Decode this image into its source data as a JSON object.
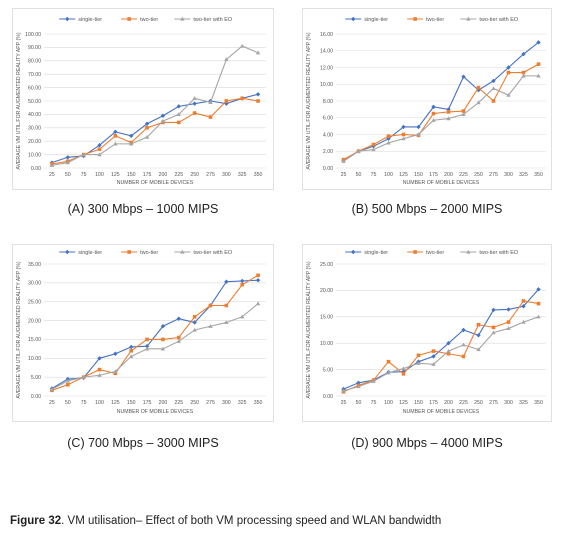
{
  "figure": {
    "label": "Figure 32",
    "text": ". VM utilisation– Effect of both VM processing speed and WLAN bandwidth"
  },
  "chart_data": [
    {
      "type": "line",
      "caption": "(A) 300 Mbps – 1000 MIPS",
      "xlabel": "NUMBER OF MOBILE DEVICES",
      "ylabel": "AVERAGE VM UTIL.FOR AUGMENTED REALITY APP (%)",
      "categories": [
        "25",
        "50",
        "75",
        "100",
        "125",
        "150",
        "175",
        "200",
        "225",
        "250",
        "275",
        "300",
        "325",
        "350"
      ],
      "yticks": [
        "0.00",
        "10.00",
        "20.00",
        "30.00",
        "40.00",
        "50.00",
        "60.00",
        "70.00",
        "80.00",
        "90.00",
        "100.00"
      ],
      "ylim": [
        0,
        100
      ],
      "legend_position": "top-center",
      "series": [
        {
          "name": "single-tier",
          "color": "#4472C4",
          "marker": "diamond",
          "values": [
            4,
            8,
            9,
            17,
            27,
            24,
            33,
            39,
            46,
            48,
            50,
            48,
            52,
            55
          ]
        },
        {
          "name": "two-tier",
          "color": "#ED7D31",
          "marker": "square",
          "values": [
            3,
            5,
            10,
            14,
            24,
            19,
            30,
            34,
            34,
            41,
            38,
            50,
            52,
            50
          ]
        },
        {
          "name": "two-tier with EO",
          "color": "#A5A5A5",
          "marker": "triangle",
          "values": [
            2,
            4,
            10,
            10,
            18,
            18,
            23,
            35,
            40,
            52,
            49,
            81,
            91,
            86
          ]
        }
      ]
    },
    {
      "type": "line",
      "caption": "(B) 500 Mbps – 2000 MIPS",
      "xlabel": "NUMBER OF MOBILE DEVICES",
      "ylabel": "AVERAGE VM UTIL.FOR AUGMENTED REALITY APP (%)",
      "categories": [
        "25",
        "50",
        "75",
        "100",
        "125",
        "150",
        "175",
        "200",
        "225",
        "250",
        "275",
        "300",
        "325",
        "350"
      ],
      "yticks": [
        "0.00",
        "2.00",
        "4.00",
        "6.00",
        "8.00",
        "10.00",
        "12.00",
        "14.00",
        "16.00"
      ],
      "ylim": [
        0,
        16
      ],
      "legend_position": "top-center",
      "series": [
        {
          "name": "single-tier",
          "color": "#4472C4",
          "marker": "diamond",
          "values": [
            0.9,
            2.0,
            2.6,
            3.5,
            4.9,
            4.9,
            7.3,
            7.0,
            10.9,
            9.3,
            10.4,
            12.0,
            13.6,
            15.0
          ]
        },
        {
          "name": "two-tier",
          "color": "#ED7D31",
          "marker": "square",
          "values": [
            1.0,
            2.0,
            2.8,
            3.8,
            4.0,
            3.9,
            6.5,
            6.7,
            6.8,
            9.6,
            8.0,
            11.4,
            11.4,
            12.4
          ]
        },
        {
          "name": "two-tier with EO",
          "color": "#A5A5A5",
          "marker": "triangle",
          "values": [
            0.8,
            2.0,
            2.2,
            3.0,
            3.5,
            4.0,
            5.7,
            5.9,
            6.4,
            7.8,
            9.5,
            8.7,
            11.0,
            11.0
          ]
        }
      ]
    },
    {
      "type": "line",
      "caption": "(C) 700 Mbps – 3000 MIPS",
      "xlabel": "NUMBER OF MOBILE DEVICES",
      "ylabel": "AVERAGE VM UTIL.FOR AUGMENTED REALITY APP (%)",
      "categories": [
        "25",
        "50",
        "75",
        "100",
        "125",
        "150",
        "175",
        "200",
        "225",
        "250",
        "275",
        "300",
        "325",
        "350"
      ],
      "yticks": [
        "0.00",
        "5.00",
        "10.00",
        "15.00",
        "20.00",
        "25.00",
        "30.00",
        "35.00"
      ],
      "ylim": [
        0,
        35
      ],
      "legend_position": "top-center",
      "series": [
        {
          "name": "single-tier",
          "color": "#4472C4",
          "marker": "diamond",
          "values": [
            2.0,
            4.5,
            4.8,
            10.0,
            11.2,
            13.0,
            13.2,
            18.5,
            20.5,
            19.5,
            24.0,
            30.3,
            30.5,
            30.7
          ]
        },
        {
          "name": "two-tier",
          "color": "#ED7D31",
          "marker": "square",
          "values": [
            1.5,
            3.0,
            5.0,
            7.0,
            6.0,
            12.0,
            15.0,
            15.0,
            15.5,
            21.0,
            24.0,
            24.0,
            29.5,
            32.0
          ]
        },
        {
          "name": "two-tier with EO",
          "color": "#A5A5A5",
          "marker": "triangle",
          "values": [
            1.8,
            4.0,
            5.0,
            5.5,
            6.5,
            10.5,
            12.5,
            12.5,
            14.5,
            17.5,
            18.5,
            19.5,
            21.0,
            24.5
          ]
        }
      ]
    },
    {
      "type": "line",
      "caption": "(D) 900 Mbps – 4000 MIPS",
      "xlabel": "NUMBER OF MOBILE DEVICES",
      "ylabel": "AVERAGE VM UTIL.FOR AUGMENTED REALITY APP (%)",
      "categories": [
        "25",
        "50",
        "75",
        "100",
        "125",
        "150",
        "175",
        "200",
        "225",
        "250",
        "275",
        "300",
        "325",
        "350"
      ],
      "yticks": [
        "0.00",
        "5.00",
        "10.00",
        "15.00",
        "20.00",
        "25.00"
      ],
      "ylim": [
        0,
        25
      ],
      "legend_position": "top-center",
      "series": [
        {
          "name": "single-tier",
          "color": "#4472C4",
          "marker": "diamond",
          "values": [
            1.3,
            2.5,
            3.0,
            4.5,
            4.6,
            6.5,
            7.5,
            10.0,
            12.5,
            11.5,
            16.3,
            16.4,
            17.0,
            20.2
          ]
        },
        {
          "name": "two-tier",
          "color": "#ED7D31",
          "marker": "square",
          "values": [
            0.8,
            2.0,
            3.0,
            6.5,
            4.2,
            7.7,
            8.5,
            8.0,
            7.5,
            13.5,
            13.0,
            14.0,
            18.0,
            17.5
          ]
        },
        {
          "name": "two-tier with EO",
          "color": "#A5A5A5",
          "marker": "triangle",
          "values": [
            1.0,
            1.8,
            2.8,
            4.4,
            5.2,
            6.2,
            6.0,
            8.5,
            9.7,
            8.8,
            12.0,
            12.8,
            14.0,
            15.0
          ]
        }
      ]
    }
  ]
}
